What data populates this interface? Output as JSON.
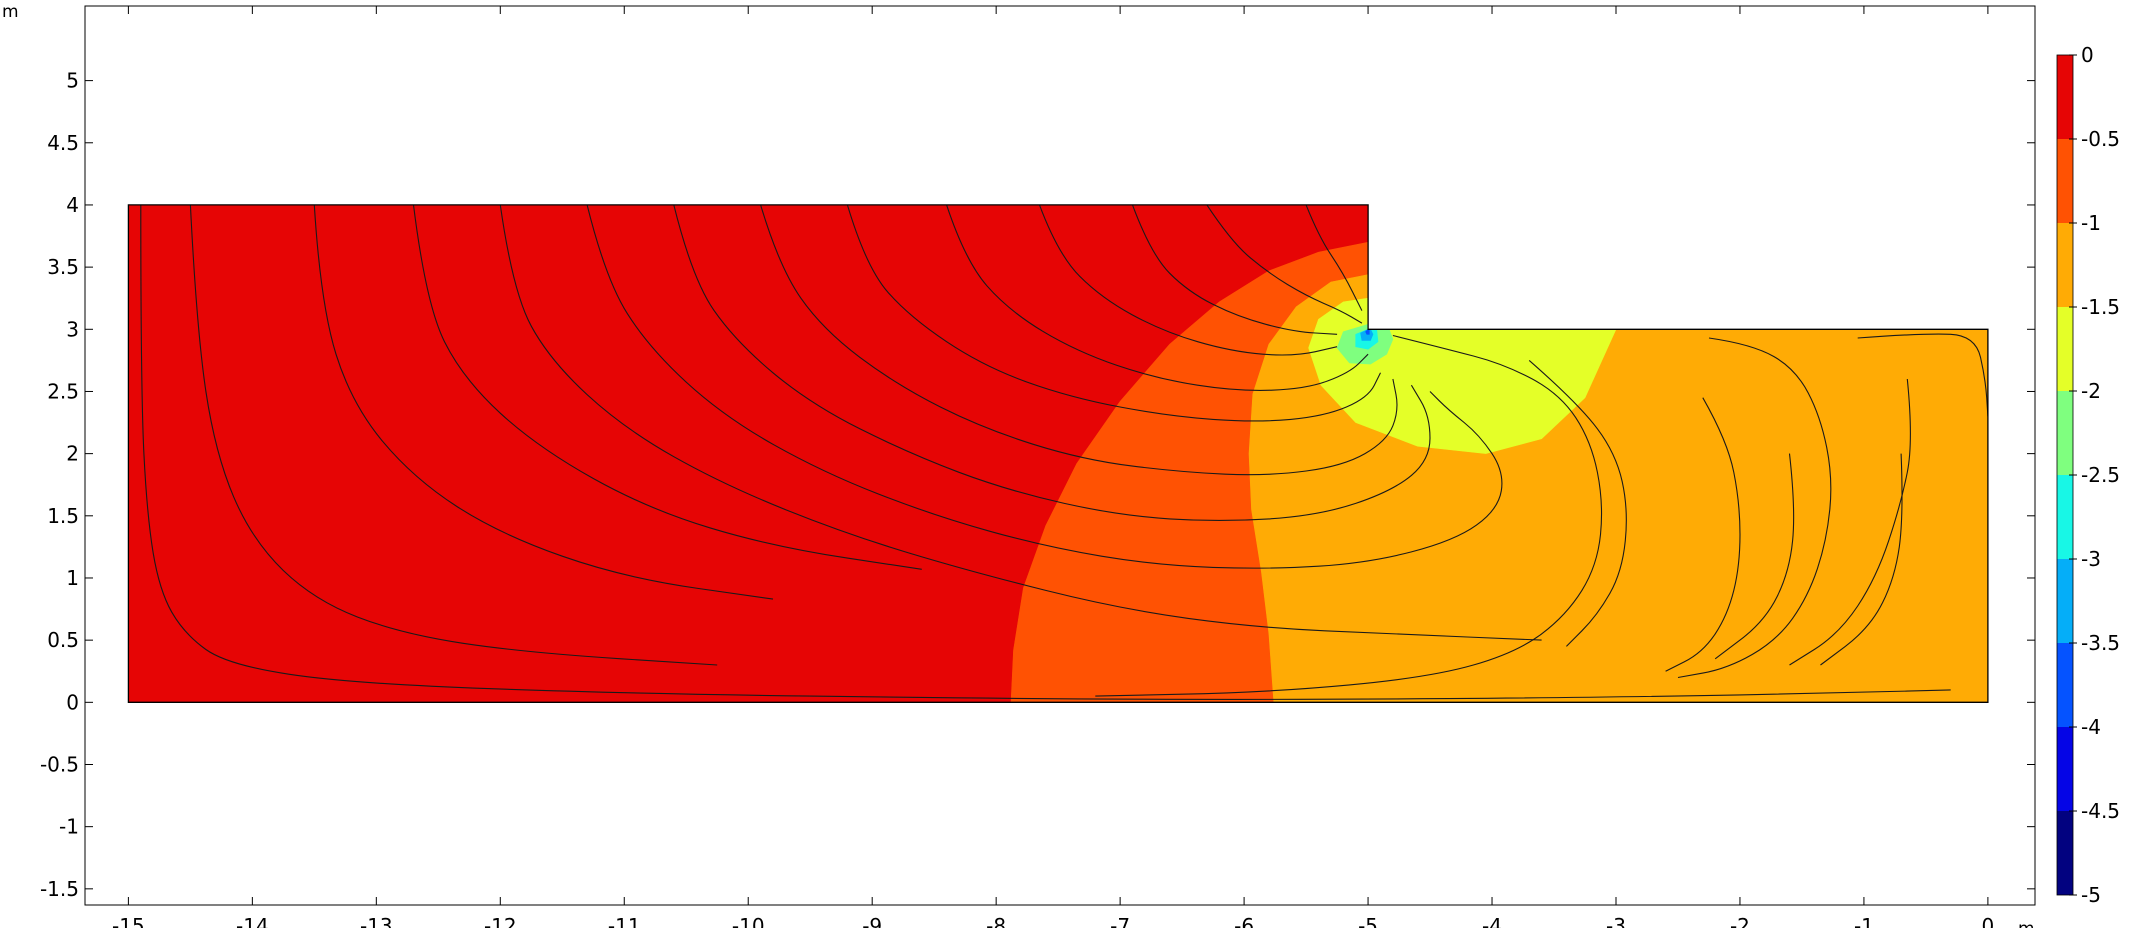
{
  "chart_data": {
    "type": "heatmap",
    "title": "",
    "xlabel": "",
    "ylabel": "",
    "x_unit": "m",
    "y_unit": "m",
    "xlim": [
      -15.35,
      0.38
    ],
    "ylim": [
      -1.63,
      5.6
    ],
    "x_ticks": [
      "-15",
      "-14",
      "-13",
      "-12",
      "-11",
      "-10",
      "-9",
      "-8",
      "-7",
      "-6",
      "-5",
      "-4",
      "-3",
      "-2",
      "-1",
      "0"
    ],
    "y_ticks": [
      "-1.5",
      "-1",
      "-0.5",
      "0",
      "0.5",
      "1",
      "1.5",
      "2",
      "2.5",
      "3",
      "3.5",
      "4",
      "4.5",
      "5"
    ],
    "grid": false,
    "domain_outline": [
      [
        -15,
        0
      ],
      [
        0,
        0
      ],
      [
        0,
        3
      ],
      [
        -5,
        3
      ],
      [
        -5,
        4
      ],
      [
        -15,
        4
      ]
    ],
    "colorbar": {
      "placement": "right",
      "min": -5,
      "max": 0,
      "ticks": [
        "0",
        "-0.5",
        "-1",
        "-1.5",
        "-2",
        "-2.5",
        "-3",
        "-3.5",
        "-4",
        "-4.5",
        "-5"
      ],
      "levels": [
        {
          "range": [
            -0.5,
            0
          ],
          "color": "#e60505"
        },
        {
          "range": [
            -1,
            -0.5
          ],
          "color": "#ff5203"
        },
        {
          "range": [
            -1.5,
            -1
          ],
          "color": "#ffab05"
        },
        {
          "range": [
            -2,
            -1.5
          ],
          "color": "#e4ff28"
        },
        {
          "range": [
            -2.5,
            -2
          ],
          "color": "#7fff7f"
        },
        {
          "range": [
            -3,
            -2.5
          ],
          "color": "#18f7e6"
        },
        {
          "range": [
            -3.5,
            -3
          ],
          "color": "#05aef8"
        },
        {
          "range": [
            -4,
            -3.5
          ],
          "color": "#0553ff"
        },
        {
          "range": [
            -4.5,
            -4
          ],
          "color": "#0505e6"
        },
        {
          "range": [
            -5,
            -4.5
          ],
          "color": "#020280"
        }
      ]
    },
    "regions": [
      {
        "level": "-0.5..0",
        "color": "#e60505",
        "points": [
          [
            -15,
            0
          ],
          [
            -15,
            4
          ],
          [
            -5,
            4
          ],
          [
            -5,
            3.7
          ],
          [
            -5.4,
            3.62
          ],
          [
            -5.8,
            3.47
          ],
          [
            -6.2,
            3.22
          ],
          [
            -6.6,
            2.88
          ],
          [
            -7.0,
            2.42
          ],
          [
            -7.35,
            1.92
          ],
          [
            -7.6,
            1.42
          ],
          [
            -7.78,
            0.92
          ],
          [
            -7.86,
            0.42
          ],
          [
            -7.88,
            0
          ]
        ]
      },
      {
        "level": "-1..-0.5",
        "color": "#ff5203",
        "points": [
          [
            -7.88,
            0
          ],
          [
            -7.86,
            0.42
          ],
          [
            -7.78,
            0.92
          ],
          [
            -7.6,
            1.42
          ],
          [
            -7.35,
            1.92
          ],
          [
            -7.0,
            2.42
          ],
          [
            -6.6,
            2.88
          ],
          [
            -6.2,
            3.22
          ],
          [
            -5.8,
            3.47
          ],
          [
            -5.4,
            3.62
          ],
          [
            -5,
            3.7
          ],
          [
            -5,
            3.44
          ],
          [
            -5.3,
            3.38
          ],
          [
            -5.58,
            3.18
          ],
          [
            -5.8,
            2.88
          ],
          [
            -5.93,
            2.48
          ],
          [
            -5.96,
            2.0
          ],
          [
            -5.94,
            1.55
          ],
          [
            -5.86,
            1.05
          ],
          [
            -5.8,
            0.55
          ],
          [
            -5.76,
            0
          ]
        ]
      },
      {
        "level": "-1.5..-1",
        "color": "#ffab05",
        "points": [
          [
            -5.76,
            0
          ],
          [
            -5.8,
            0.55
          ],
          [
            -5.86,
            1.05
          ],
          [
            -5.94,
            1.55
          ],
          [
            -5.96,
            2.0
          ],
          [
            -5.93,
            2.48
          ],
          [
            -5.8,
            2.88
          ],
          [
            -5.58,
            3.18
          ],
          [
            -5.3,
            3.38
          ],
          [
            -5,
            3.44
          ],
          [
            -5,
            3
          ],
          [
            0,
            3
          ],
          [
            0,
            0
          ]
        ]
      },
      {
        "level": "-2..-1.5",
        "color": "#e4ff28",
        "points": [
          [
            -5,
            3.25
          ],
          [
            -5.2,
            3.22
          ],
          [
            -5.4,
            3.08
          ],
          [
            -5.48,
            2.85
          ],
          [
            -5.38,
            2.55
          ],
          [
            -5.1,
            2.25
          ],
          [
            -4.6,
            2.06
          ],
          [
            -4.05,
            2.0
          ],
          [
            -3.6,
            2.12
          ],
          [
            -3.25,
            2.45
          ],
          [
            -3,
            3
          ],
          [
            -5,
            3
          ]
        ]
      },
      {
        "level": "-2.5..-2",
        "color": "#7fff7f",
        "points": [
          [
            -5,
            3.04
          ],
          [
            -5.2,
            2.98
          ],
          [
            -5.25,
            2.85
          ],
          [
            -5.15,
            2.73
          ],
          [
            -4.98,
            2.72
          ],
          [
            -4.85,
            2.8
          ],
          [
            -4.8,
            2.92
          ],
          [
            -4.83,
            3
          ],
          [
            -5,
            3
          ]
        ]
      },
      {
        "level": "-3..-2.5",
        "color": "#18f7e6",
        "points": [
          [
            -5,
            3.0
          ],
          [
            -5.1,
            2.96
          ],
          [
            -5.1,
            2.86
          ],
          [
            -5.0,
            2.84
          ],
          [
            -4.92,
            2.9
          ],
          [
            -4.93,
            3
          ],
          [
            -5,
            3
          ]
        ]
      },
      {
        "level": "-3.5..-3",
        "color": "#05aef8",
        "points": [
          [
            -5,
            3.0
          ],
          [
            -5.06,
            2.97
          ],
          [
            -5.05,
            2.91
          ],
          [
            -4.98,
            2.91
          ],
          [
            -4.96,
            2.96
          ],
          [
            -4.98,
            3
          ],
          [
            -5,
            3
          ]
        ]
      },
      {
        "level": "-4..-3.5",
        "color": "#0553ff",
        "points": [
          [
            -5,
            3.0
          ],
          [
            -5.02,
            2.98
          ],
          [
            -5.01,
            2.96
          ],
          [
            -4.99,
            2.96
          ],
          [
            -4.99,
            2.99
          ],
          [
            -5,
            3
          ]
        ]
      }
    ],
    "streamlines": [
      [
        [
          -14.9,
          4
        ],
        [
          -14.9,
          2.5
        ],
        [
          -14.85,
          1.5
        ],
        [
          -14.75,
          0.9
        ],
        [
          -14.55,
          0.55
        ],
        [
          -14.2,
          0.3
        ],
        [
          -13.2,
          0.15
        ],
        [
          -11,
          0.07
        ],
        [
          -8,
          0.03
        ],
        [
          -5.7,
          0.02
        ],
        [
          -3,
          0.04
        ],
        [
          -1,
          0.08
        ],
        [
          -0.3,
          0.1
        ]
      ],
      [
        [
          -14.5,
          4
        ],
        [
          -14.45,
          3
        ],
        [
          -14.3,
          2.0
        ],
        [
          -14.0,
          1.3
        ],
        [
          -13.5,
          0.82
        ],
        [
          -12.8,
          0.55
        ],
        [
          -11.8,
          0.4
        ],
        [
          -10.25,
          0.3
        ]
      ],
      [
        [
          -13.5,
          4
        ],
        [
          -13.45,
          3.2
        ],
        [
          -13.2,
          2.4
        ],
        [
          -12.7,
          1.8
        ],
        [
          -12,
          1.35
        ],
        [
          -11,
          1.0
        ],
        [
          -9.8,
          0.83
        ]
      ],
      [
        [
          -12.7,
          4
        ],
        [
          -12.6,
          3.2
        ],
        [
          -12.3,
          2.6
        ],
        [
          -11.7,
          2.05
        ],
        [
          -10.8,
          1.55
        ],
        [
          -9.8,
          1.25
        ],
        [
          -8.6,
          1.07
        ]
      ],
      [
        [
          -12,
          4
        ],
        [
          -11.9,
          3.3
        ],
        [
          -11.6,
          2.75
        ],
        [
          -11.0,
          2.2
        ],
        [
          -10.2,
          1.75
        ],
        [
          -9.2,
          1.35
        ],
        [
          -8.2,
          1.05
        ],
        [
          -7.0,
          0.75
        ],
        [
          -5.9,
          0.6
        ],
        [
          -4.8,
          0.55
        ],
        [
          -3.6,
          0.5
        ]
      ],
      [
        [
          -11.3,
          4
        ],
        [
          -11.15,
          3.4
        ],
        [
          -10.8,
          2.85
        ],
        [
          -10.2,
          2.3
        ],
        [
          -9.4,
          1.85
        ],
        [
          -8.5,
          1.5
        ],
        [
          -7.6,
          1.25
        ],
        [
          -6.7,
          1.1
        ],
        [
          -5.8,
          1.07
        ],
        [
          -5.0,
          1.12
        ],
        [
          -4.3,
          1.3
        ],
        [
          -3.95,
          1.55
        ],
        [
          -3.9,
          1.85
        ],
        [
          -4.1,
          2.15
        ],
        [
          -4.35,
          2.35
        ],
        [
          -4.5,
          2.5
        ]
      ],
      [
        [
          -10.6,
          4
        ],
        [
          -10.45,
          3.4
        ],
        [
          -10.1,
          2.9
        ],
        [
          -9.5,
          2.4
        ],
        [
          -8.7,
          2.0
        ],
        [
          -7.9,
          1.7
        ],
        [
          -7.0,
          1.5
        ],
        [
          -6.2,
          1.45
        ],
        [
          -5.4,
          1.5
        ],
        [
          -4.8,
          1.7
        ],
        [
          -4.5,
          1.95
        ],
        [
          -4.5,
          2.3
        ],
        [
          -4.65,
          2.55
        ]
      ],
      [
        [
          -9.9,
          4
        ],
        [
          -9.75,
          3.5
        ],
        [
          -9.4,
          3.0
        ],
        [
          -8.8,
          2.55
        ],
        [
          -8.1,
          2.2
        ],
        [
          -7.3,
          1.95
        ],
        [
          -6.5,
          1.85
        ],
        [
          -5.8,
          1.82
        ],
        [
          -5.2,
          1.9
        ],
        [
          -4.85,
          2.1
        ],
        [
          -4.75,
          2.35
        ],
        [
          -4.8,
          2.6
        ]
      ],
      [
        [
          -9.2,
          4
        ],
        [
          -9.05,
          3.5
        ],
        [
          -8.7,
          3.1
        ],
        [
          -8.1,
          2.7
        ],
        [
          -7.4,
          2.45
        ],
        [
          -6.6,
          2.3
        ],
        [
          -5.9,
          2.25
        ],
        [
          -5.35,
          2.3
        ],
        [
          -5.0,
          2.45
        ],
        [
          -4.9,
          2.65
        ]
      ],
      [
        [
          -8.4,
          4
        ],
        [
          -8.25,
          3.55
        ],
        [
          -7.9,
          3.15
        ],
        [
          -7.35,
          2.82
        ],
        [
          -6.7,
          2.6
        ],
        [
          -6.05,
          2.5
        ],
        [
          -5.5,
          2.52
        ],
        [
          -5.15,
          2.65
        ],
        [
          -5.0,
          2.8
        ]
      ],
      [
        [
          -7.65,
          4
        ],
        [
          -7.5,
          3.6
        ],
        [
          -7.15,
          3.25
        ],
        [
          -6.65,
          2.98
        ],
        [
          -6.1,
          2.82
        ],
        [
          -5.6,
          2.78
        ],
        [
          -5.25,
          2.86
        ]
      ],
      [
        [
          -6.9,
          4
        ],
        [
          -6.75,
          3.6
        ],
        [
          -6.45,
          3.3
        ],
        [
          -6.05,
          3.1
        ],
        [
          -5.6,
          2.98
        ],
        [
          -5.25,
          2.96
        ]
      ],
      [
        [
          -6.3,
          4
        ],
        [
          -6.1,
          3.7
        ],
        [
          -5.8,
          3.45
        ],
        [
          -5.5,
          3.27
        ],
        [
          -5.22,
          3.15
        ],
        [
          -5.05,
          3.05
        ]
      ],
      [
        [
          -5.5,
          4
        ],
        [
          -5.4,
          3.75
        ],
        [
          -5.2,
          3.45
        ],
        [
          -5.05,
          3.15
        ]
      ],
      [
        [
          -4.8,
          2.95
        ],
        [
          -4.4,
          2.85
        ],
        [
          -3.9,
          2.72
        ],
        [
          -3.45,
          2.48
        ],
        [
          -3.2,
          2.1
        ],
        [
          -3.1,
          1.6
        ],
        [
          -3.15,
          1.1
        ],
        [
          -3.4,
          0.7
        ],
        [
          -3.8,
          0.4
        ],
        [
          -4.5,
          0.2
        ],
        [
          -5.8,
          0.08
        ],
        [
          -7.2,
          0.05
        ]
      ],
      [
        [
          -2.25,
          2.93
        ],
        [
          -1.9,
          2.88
        ],
        [
          -1.55,
          2.68
        ],
        [
          -1.35,
          2.3
        ],
        [
          -1.25,
          1.8
        ],
        [
          -1.3,
          1.3
        ],
        [
          -1.45,
          0.85
        ],
        [
          -1.7,
          0.5
        ],
        [
          -2.1,
          0.27
        ],
        [
          -2.5,
          0.2
        ]
      ],
      [
        [
          -1.05,
          2.93
        ],
        [
          -0.5,
          2.97
        ],
        [
          -0.1,
          2.95
        ],
        [
          -0.02,
          2.6
        ],
        [
          0,
          2.3
        ]
      ],
      [
        [
          -3.7,
          2.75
        ],
        [
          -3.3,
          2.4
        ],
        [
          -3.0,
          2.0
        ],
        [
          -2.9,
          1.55
        ],
        [
          -2.95,
          1.05
        ],
        [
          -3.15,
          0.7
        ],
        [
          -3.4,
          0.45
        ]
      ],
      [
        [
          -2.3,
          2.45
        ],
        [
          -2.1,
          2.1
        ],
        [
          -2.0,
          1.6
        ],
        [
          -2.0,
          1.1
        ],
        [
          -2.1,
          0.7
        ],
        [
          -2.3,
          0.4
        ],
        [
          -2.6,
          0.25
        ]
      ],
      [
        [
          -1.6,
          2.0
        ],
        [
          -1.55,
          1.55
        ],
        [
          -1.6,
          1.05
        ],
        [
          -1.8,
          0.65
        ],
        [
          -2.2,
          0.35
        ]
      ],
      [
        [
          -0.65,
          2.6
        ],
        [
          -0.6,
          2.1
        ],
        [
          -0.7,
          1.6
        ],
        [
          -0.9,
          1.0
        ],
        [
          -1.2,
          0.55
        ],
        [
          -1.6,
          0.3
        ]
      ],
      [
        [
          -0.7,
          2.0
        ],
        [
          -0.68,
          1.5
        ],
        [
          -0.75,
          1.0
        ],
        [
          -0.95,
          0.6
        ],
        [
          -1.35,
          0.3
        ]
      ]
    ]
  }
}
